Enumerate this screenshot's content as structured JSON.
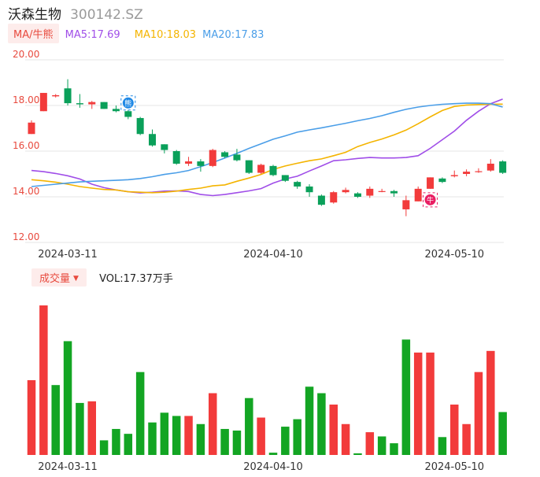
{
  "header": {
    "stock_name": "沃森生物",
    "stock_code": "300142.SZ"
  },
  "ma_legend": {
    "toggle_label": "MA/牛熊",
    "ma5": "MA5:17.69",
    "ma10": "MA10:18.03",
    "ma20": "MA20:17.83"
  },
  "volume_legend": {
    "toggle_label": "成交量",
    "vol_text": "VOL:17.37万手"
  },
  "colors": {
    "up": "#f23b3b",
    "down": "#0aa05a",
    "ma5": "#a04ee8",
    "ma10": "#f4b400",
    "ma20": "#4a9ee8",
    "price_axis_text": "#e84a3e",
    "grid": "#e6e6e6"
  },
  "markers": [
    {
      "label": "熊",
      "index": 8,
      "color": "#1e88e5"
    },
    {
      "label": "牛",
      "index": 33,
      "color": "#e91e63"
    }
  ],
  "chart_data": {
    "type": "candlestick",
    "y_ticks": [
      "20.00",
      "18.00",
      "16.00",
      "14.00",
      "12.00"
    ],
    "ylim": [
      12,
      20
    ],
    "x_tick_labels": [
      {
        "index": 3,
        "label": "2024-03-11"
      },
      {
        "index": 20,
        "label": "2024-04-10"
      },
      {
        "index": 35,
        "label": "2024-05-10"
      }
    ],
    "candles": [
      {
        "o": 16.75,
        "c": 17.25,
        "h": 17.35,
        "l": 16.75
      },
      {
        "o": 17.75,
        "c": 18.55,
        "h": 18.55,
        "l": 17.75
      },
      {
        "o": 18.4,
        "c": 18.45,
        "h": 18.5,
        "l": 18.35
      },
      {
        "o": 18.75,
        "c": 18.1,
        "h": 19.15,
        "l": 18.0
      },
      {
        "o": 18.1,
        "c": 18.05,
        "h": 18.5,
        "l": 17.9
      },
      {
        "o": 18.05,
        "c": 18.15,
        "h": 18.2,
        "l": 17.85
      },
      {
        "o": 18.15,
        "c": 17.85,
        "h": 18.15,
        "l": 17.85
      },
      {
        "o": 17.85,
        "c": 17.75,
        "h": 18.0,
        "l": 17.7
      },
      {
        "o": 17.75,
        "c": 17.5,
        "h": 17.8,
        "l": 17.4
      },
      {
        "o": 17.45,
        "c": 16.75,
        "h": 17.5,
        "l": 16.7
      },
      {
        "o": 16.75,
        "c": 16.25,
        "h": 16.95,
        "l": 16.2
      },
      {
        "o": 16.3,
        "c": 16.05,
        "h": 16.3,
        "l": 15.9
      },
      {
        "o": 16.0,
        "c": 15.45,
        "h": 16.05,
        "l": 15.4
      },
      {
        "o": 15.45,
        "c": 15.55,
        "h": 15.75,
        "l": 15.35
      },
      {
        "o": 15.55,
        "c": 15.35,
        "h": 15.65,
        "l": 15.1
      },
      {
        "o": 15.35,
        "c": 16.05,
        "h": 16.1,
        "l": 15.3
      },
      {
        "o": 15.95,
        "c": 15.75,
        "h": 16.0,
        "l": 15.7
      },
      {
        "o": 15.85,
        "c": 15.6,
        "h": 16.1,
        "l": 15.55
      },
      {
        "o": 15.6,
        "c": 15.05,
        "h": 15.6,
        "l": 15.0
      },
      {
        "o": 15.05,
        "c": 15.4,
        "h": 15.45,
        "l": 15.0
      },
      {
        "o": 15.35,
        "c": 14.95,
        "h": 15.4,
        "l": 14.9
      },
      {
        "o": 14.95,
        "c": 14.7,
        "h": 14.95,
        "l": 14.65
      },
      {
        "o": 14.65,
        "c": 14.45,
        "h": 14.7,
        "l": 14.35
      },
      {
        "o": 14.45,
        "c": 14.2,
        "h": 14.55,
        "l": 14.0
      },
      {
        "o": 14.05,
        "c": 13.65,
        "h": 14.1,
        "l": 13.6
      },
      {
        "o": 13.75,
        "c": 14.2,
        "h": 14.25,
        "l": 13.7
      },
      {
        "o": 14.2,
        "c": 14.3,
        "h": 14.4,
        "l": 14.15
      },
      {
        "o": 14.15,
        "c": 14.0,
        "h": 14.2,
        "l": 13.95
      },
      {
        "o": 14.05,
        "c": 14.35,
        "h": 14.45,
        "l": 13.95
      },
      {
        "o": 14.25,
        "c": 14.25,
        "h": 14.35,
        "l": 14.2
      },
      {
        "o": 14.25,
        "c": 14.15,
        "h": 14.3,
        "l": 14.0
      },
      {
        "o": 13.45,
        "c": 13.85,
        "h": 14.05,
        "l": 13.15
      },
      {
        "o": 13.8,
        "c": 14.35,
        "h": 14.45,
        "l": 13.8
      },
      {
        "o": 14.35,
        "c": 14.85,
        "h": 14.85,
        "l": 14.35
      },
      {
        "o": 14.8,
        "c": 14.65,
        "h": 14.85,
        "l": 14.6
      },
      {
        "o": 14.9,
        "c": 14.95,
        "h": 15.15,
        "l": 14.85
      },
      {
        "o": 15.0,
        "c": 15.1,
        "h": 15.2,
        "l": 14.9
      },
      {
        "o": 15.1,
        "c": 15.12,
        "h": 15.25,
        "l": 15.05
      },
      {
        "o": 15.15,
        "c": 15.45,
        "h": 15.65,
        "l": 15.1
      },
      {
        "o": 15.55,
        "c": 15.05,
        "h": 15.6,
        "l": 15.0
      }
    ],
    "series": [
      {
        "key": "ma5",
        "name": "MA5",
        "values": [
          15.15,
          15.1,
          15.02,
          14.92,
          14.78,
          14.55,
          14.4,
          14.3,
          14.22,
          14.17,
          14.2,
          14.25,
          14.26,
          14.23,
          14.1,
          14.05,
          14.1,
          14.18,
          14.26,
          14.36,
          14.6,
          14.78,
          14.9,
          15.13,
          15.35,
          15.58,
          15.62,
          15.68,
          15.72,
          15.7,
          15.7,
          15.72,
          15.8,
          16.12,
          16.5,
          16.88,
          17.35,
          17.75,
          18.08,
          18.28
        ]
      },
      {
        "key": "ma10",
        "name": "MA10",
        "values": [
          14.75,
          14.7,
          14.64,
          14.55,
          14.45,
          14.38,
          14.32,
          14.3,
          14.22,
          14.2,
          14.18,
          14.2,
          14.25,
          14.32,
          14.38,
          14.48,
          14.52,
          14.68,
          14.82,
          14.98,
          15.2,
          15.35,
          15.47,
          15.58,
          15.66,
          15.8,
          15.95,
          16.2,
          16.38,
          16.53,
          16.71,
          16.92,
          17.2,
          17.5,
          17.78,
          17.96,
          18.02,
          18.04,
          18.05,
          18.06
        ]
      },
      {
        "key": "ma20",
        "name": "MA20",
        "values": [
          14.45,
          14.5,
          14.55,
          14.6,
          14.65,
          14.68,
          14.7,
          14.72,
          14.75,
          14.8,
          14.88,
          14.98,
          15.05,
          15.15,
          15.32,
          15.5,
          15.7,
          15.9,
          16.12,
          16.32,
          16.52,
          16.67,
          16.83,
          16.93,
          17.02,
          17.12,
          17.22,
          17.33,
          17.43,
          17.55,
          17.7,
          17.83,
          17.93,
          18.0,
          18.05,
          18.08,
          18.1,
          18.1,
          18.08,
          17.93
        ]
      }
    ],
    "volume": [
      23,
      46,
      21.5,
      35,
      16,
      16.5,
      4.5,
      8,
      6.5,
      25.5,
      10,
      13,
      12,
      12,
      9.5,
      19,
      8,
      7.5,
      17.5,
      11.5,
      0.7,
      8.7,
      11,
      21,
      19,
      15.5,
      9.5,
      0.5,
      7,
      5.7,
      3.6,
      35.5,
      31.5,
      31.5,
      5.5,
      15.5,
      9.5,
      25.5,
      32,
      13.2
    ],
    "volume_ymax": 46,
    "volume_up": [
      true,
      true,
      false,
      false,
      false,
      true,
      false,
      false,
      false,
      false,
      false,
      false,
      false,
      true,
      false,
      true,
      false,
      false,
      false,
      true,
      false,
      false,
      false,
      false,
      false,
      true,
      true,
      false,
      true,
      false,
      false,
      false,
      true,
      true,
      false,
      true,
      true,
      true,
      true,
      false
    ]
  }
}
